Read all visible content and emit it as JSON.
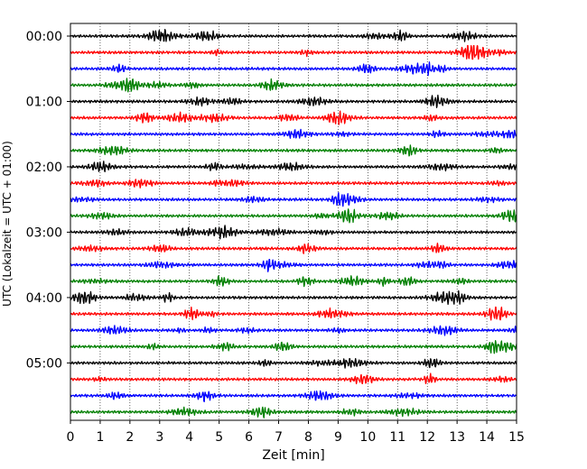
{
  "chart_data": {
    "type": "line",
    "title": "",
    "xlabel": "Zeit  [min]",
    "ylabel": "UTC (Lokalzeit = UTC + 01:00)",
    "xlim": [
      0,
      15
    ],
    "x_ticks": [
      "0",
      "1",
      "2",
      "3",
      "4",
      "5",
      "6",
      "7",
      "8",
      "9",
      "10",
      "11",
      "12",
      "13",
      "14",
      "15"
    ],
    "y_ticks": [
      "00:00",
      "01:00",
      "02:00",
      "03:00",
      "04:00",
      "05:00"
    ],
    "row_interval_minutes": 15,
    "row_count": 24,
    "row_colors": [
      "#000000",
      "#ff0000",
      "#0000ff",
      "#008000"
    ],
    "grid": "vertical dotted lines at each minute",
    "legend": "none"
  }
}
